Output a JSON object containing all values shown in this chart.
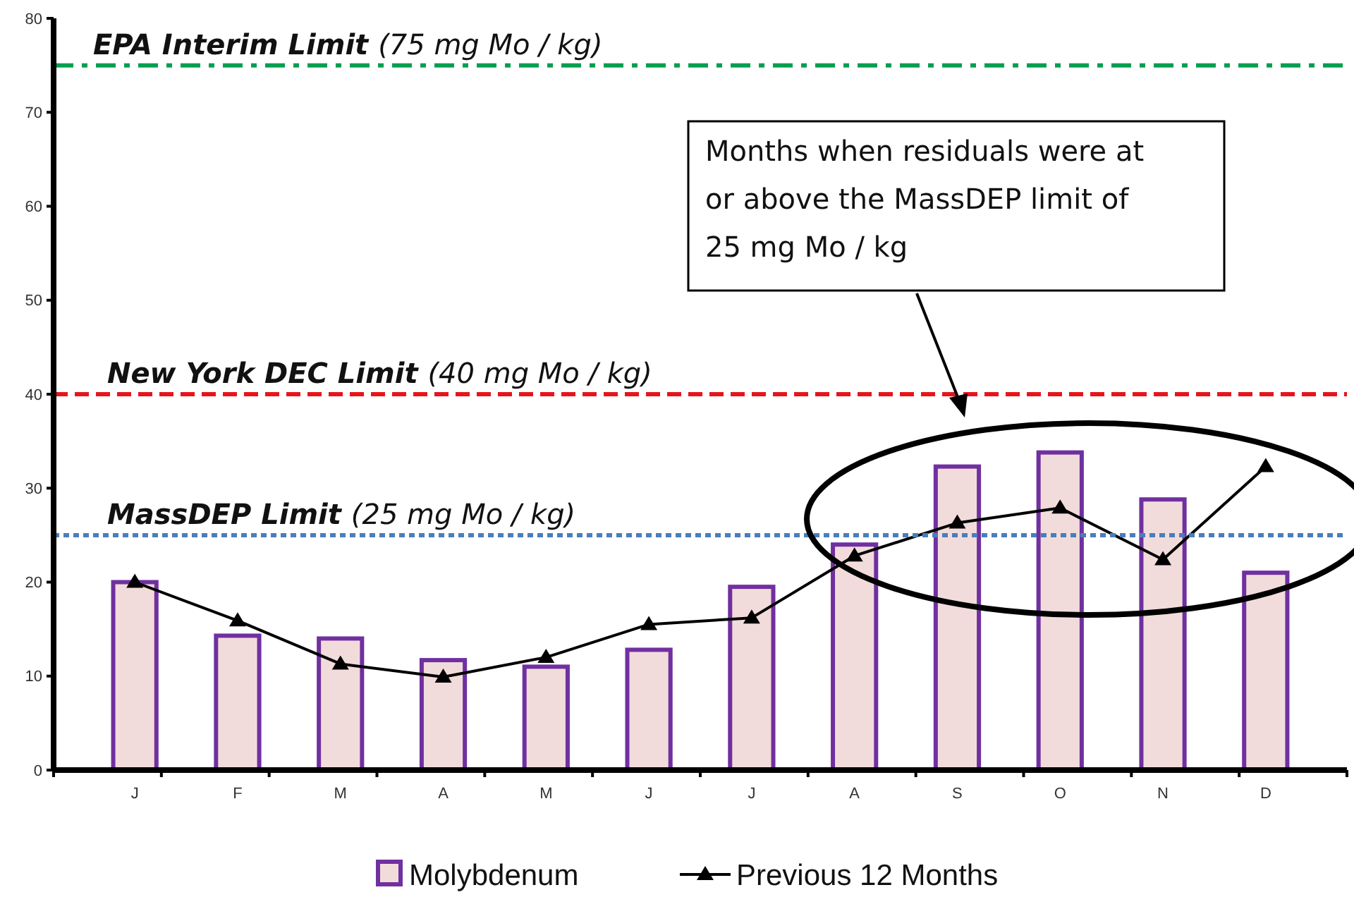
{
  "chart_data": {
    "type": "bar",
    "categories": [
      "J",
      "F",
      "M",
      "A",
      "M",
      "J",
      "J",
      "A",
      "S",
      "O",
      "N",
      "D"
    ],
    "series": [
      {
        "name": "Molybdenum",
        "color": "#f2dcdb",
        "values": [
          20,
          14.3,
          14,
          11.7,
          11,
          12.8,
          19.5,
          24,
          32.3,
          33.8,
          28.8,
          21
        ]
      },
      {
        "name": "Previous 12 Months",
        "type": "line",
        "color": "#000000",
        "marker": "triangle",
        "values": [
          20,
          15.9,
          11.3,
          9.9,
          12,
          15.5,
          16.2,
          22.8,
          26.3,
          27.9,
          22.4,
          32.3
        ]
      }
    ],
    "ylim": [
      0,
      80
    ],
    "yticks": [
      0,
      10,
      20,
      30,
      40,
      50,
      60,
      70,
      80
    ],
    "grid": false,
    "legend": "bottom",
    "ref_lines": [
      {
        "axis": "y",
        "value": 75,
        "label": "EPA Interim Limit (75 mg Mo / kg)",
        "color": "#00a050",
        "line_style": "dashdot"
      },
      {
        "axis": "y",
        "value": 40,
        "label": "New York DEC Limit (40 mg Mo / kg)",
        "color": "#e8141b",
        "line_style": "dashed"
      },
      {
        "axis": "y",
        "value": 25,
        "label": "MassDEP Limit (25 mg Mo / kg)",
        "color": "#4a7ebb",
        "line_style": "dotted"
      }
    ],
    "annotations": [
      "Months when residuals were at or above the MassDEP limit of 25 mg Mo / kg"
    ]
  }
}
